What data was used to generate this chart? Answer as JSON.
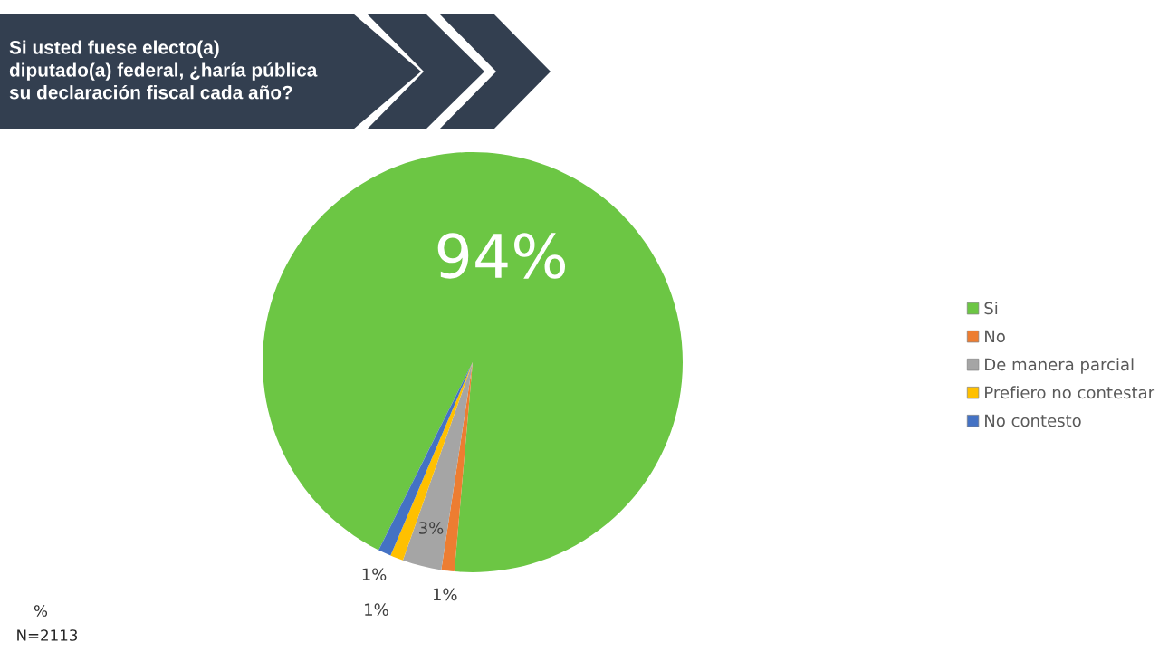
{
  "chart_data": {
    "type": "pie",
    "title": "Si usted fuese electo(a)\ndiputado(a) federal, ¿haría pública\nsu declaración fiscal cada año?",
    "categories": [
      "Si",
      "No",
      "De manera parcial",
      "Prefiero no contestar",
      "No contesto"
    ],
    "values": [
      94,
      1,
      3,
      1,
      1
    ],
    "colors": [
      "#6cc644",
      "#ed7d31",
      "#a5a5a5",
      "#ffc000",
      "#4472c4"
    ],
    "value_labels": [
      "94%",
      "1%",
      "3%",
      "1%",
      "1%"
    ],
    "legend": "right",
    "annotations": [
      "%",
      "N=2113"
    ]
  }
}
